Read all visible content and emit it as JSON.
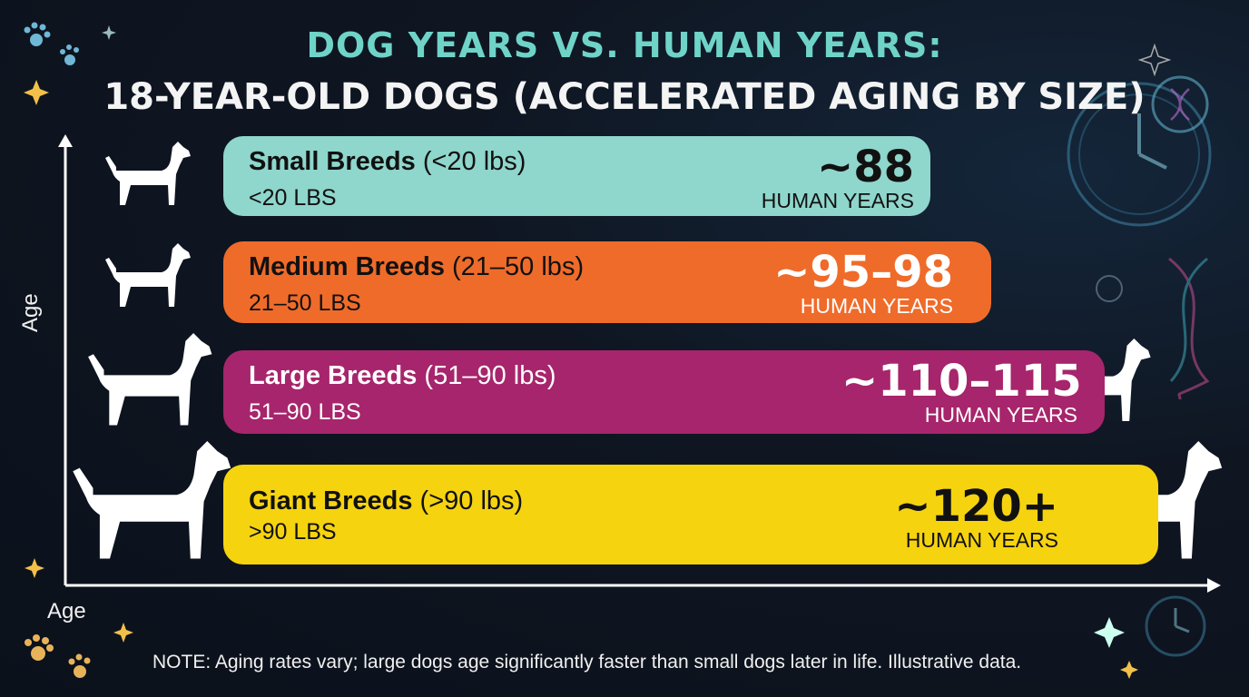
{
  "title_line1": "DOG YEARS VS. HUMAN YEARS:",
  "title_line2": "18-YEAR-OLD DOGS (ACCELERATED AGING BY SIZE)",
  "y_axis_label": "Age",
  "x_axis_label": "Age",
  "note": "NOTE: Aging rates vary; large dogs age significantly faster than small dogs later in life. Illustrative data.",
  "colors": {
    "background": "#0f1622",
    "title_accent": "#6fd3c8",
    "axis": "#ffffff"
  },
  "chart_data": {
    "type": "bar",
    "orientation": "horizontal",
    "dog_age_years": 18,
    "categories": [
      "Small Breeds",
      "Medium Breeds",
      "Large Breeds",
      "Giant Breeds"
    ],
    "values": [
      88,
      96.5,
      112.5,
      120
    ],
    "bars": [
      {
        "name": "Small Breeds",
        "range": "(<20 lbs)",
        "sublabel": "<20 LBS",
        "value_label": "~88",
        "unit_label": "HUMAN YEARS",
        "value": 88,
        "color": "#8fd6cc",
        "icon": "small-terrier-icon"
      },
      {
        "name": "Medium Breeds",
        "range": "(21–50 lbs)",
        "sublabel": "21–50 LBS",
        "value_label": "~95–98",
        "unit_label": "HUMAN YEARS",
        "value": 96.5,
        "color": "#ef6b2a",
        "icon": "beagle-icon"
      },
      {
        "name": "Large Breeds",
        "range": "(51–90 lbs)",
        "sublabel": "51–90 LBS",
        "value_label": "~110–115",
        "unit_label": "HUMAN YEARS",
        "value": 112.5,
        "color": "#a7256c",
        "icon": "retriever-icon"
      },
      {
        "name": "Giant Breeds",
        "range": "(>90 lbs)",
        "sublabel": ">90 LBS",
        "value_label": "~120+",
        "unit_label": "HUMAN YEARS",
        "value": 120,
        "color": "#f5d30f",
        "icon": "great-dane-icon"
      }
    ]
  }
}
